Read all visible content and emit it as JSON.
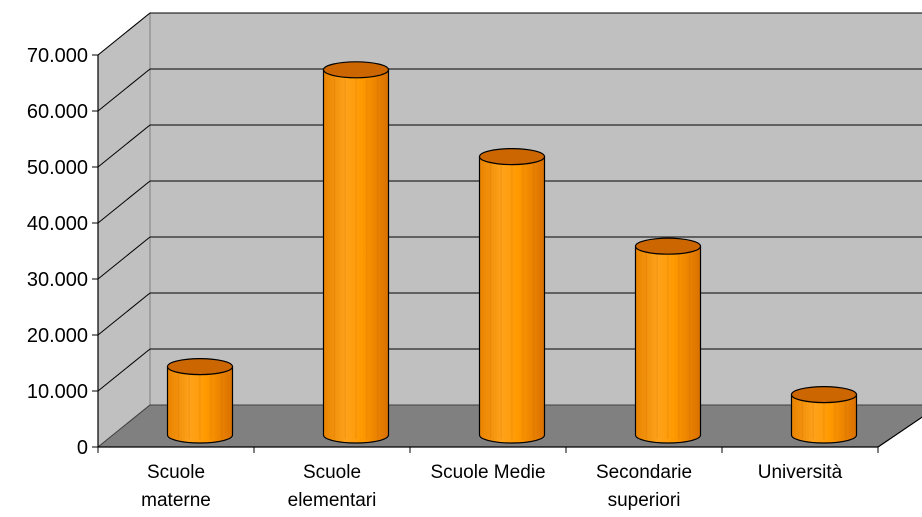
{
  "chart_data": {
    "type": "bar",
    "title": "",
    "xlabel": "",
    "ylabel": "",
    "categories": [
      [
        "Scuole",
        "materne"
      ],
      [
        "Scuole",
        "elementari"
      ],
      [
        "Scuole Medie"
      ],
      [
        "Secondarie",
        "superiori"
      ],
      [
        "Università"
      ]
    ],
    "values": [
      14000,
      67000,
      51500,
      35500,
      9000
    ],
    "ylim": [
      0,
      70000
    ],
    "yticks": [
      "0",
      "10.000",
      "20.000",
      "30.000",
      "40.000",
      "50.000",
      "60.000",
      "70.000"
    ],
    "grid": true,
    "legend": "none",
    "colors": {
      "bar_front": "#ff9900",
      "bar_dark": "#e07800",
      "bar_light": "#ffad33",
      "bar_top": "#cc6600",
      "back_wall": "#c0c0c0",
      "side_wall": "#c0c0c0",
      "floor": "#808080",
      "grid": "#000000"
    }
  }
}
